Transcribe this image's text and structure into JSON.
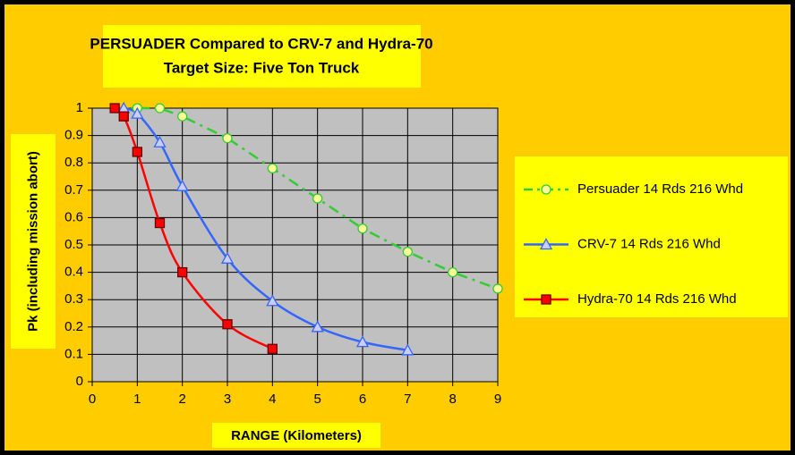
{
  "chart_data": {
    "type": "line",
    "title": "PERSUADER Compared to CRV-7 and Hydra-70",
    "subtitle": "Target Size: Five Ton Truck",
    "xlabel": "RANGE (Kilometers)",
    "ylabel": "Pk (including mission abort)",
    "xlim": [
      0,
      9
    ],
    "xticks": [
      0,
      1,
      2,
      3,
      4,
      5,
      6,
      7,
      8,
      9
    ],
    "ylim": [
      0,
      1
    ],
    "yticks": [
      0,
      0.1,
      0.2,
      0.3,
      0.4,
      0.5,
      0.6,
      0.7,
      0.8,
      0.9,
      1
    ],
    "grid": true,
    "legend": "right",
    "series": [
      {
        "name": "Persuader 14 Rds 216 Whd",
        "color": "#33CC33",
        "marker": "circle",
        "dashed": true,
        "smooth": false,
        "x": [
          0.5,
          1,
          1.5,
          2,
          3,
          4,
          5,
          6,
          7,
          8,
          9
        ],
        "values": [
          1,
          1,
          1,
          0.97,
          0.89,
          0.78,
          0.67,
          0.56,
          0.475,
          0.4,
          0.34
        ]
      },
      {
        "name": "CRV-7 14 Rds 216 Whd",
        "color": "#3366FF",
        "marker": "triangle",
        "dashed": false,
        "smooth": true,
        "x": [
          0.7,
          1,
          1.5,
          2,
          3,
          4,
          5,
          6,
          7
        ],
        "values": [
          1,
          0.98,
          0.875,
          0.715,
          0.45,
          0.295,
          0.2,
          0.145,
          0.115
        ]
      },
      {
        "name": "Hydra-70 14 Rds 216 Whd",
        "color": "#FF0000",
        "marker": "square",
        "dashed": false,
        "smooth": true,
        "x": [
          0.5,
          0.7,
          1,
          1.5,
          2,
          3,
          4
        ],
        "values": [
          1,
          0.97,
          0.84,
          0.58,
          0.4,
          0.21,
          0.12
        ]
      }
    ]
  }
}
